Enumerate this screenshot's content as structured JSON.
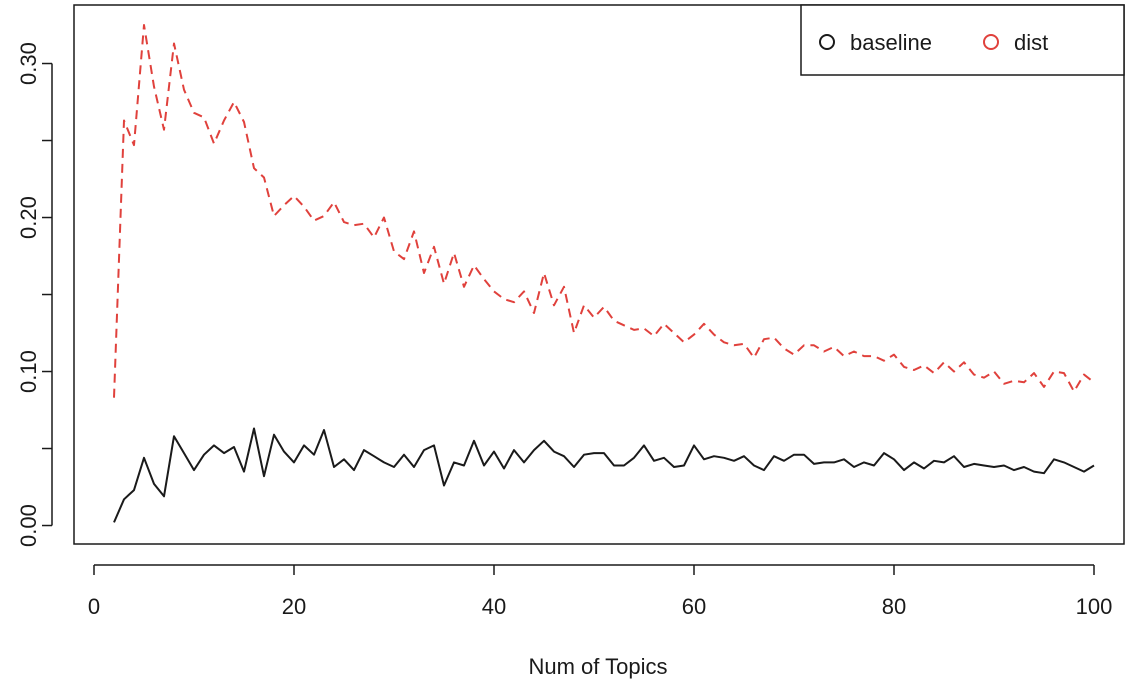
{
  "chart_data": {
    "type": "line",
    "title": "",
    "xlabel": "Num of Topics",
    "ylabel": "",
    "xlim": [
      -2,
      103
    ],
    "ylim": [
      -0.012,
      0.338
    ],
    "x_ticks": [
      0,
      20,
      40,
      60,
      80,
      100
    ],
    "x_tick_labels": [
      "0",
      "20",
      "40",
      "60",
      "80",
      "100"
    ],
    "y_ticks": [
      0.0,
      0.1,
      0.2,
      0.3
    ],
    "y_tick_labels": [
      "0.00",
      "0.10",
      "0.20",
      "0.30"
    ],
    "y_minor_ticks": [
      0.05,
      0.15,
      0.25
    ],
    "grid": false,
    "legend_position": "top-right",
    "x": [
      2,
      3,
      4,
      5,
      6,
      7,
      8,
      9,
      10,
      11,
      12,
      13,
      14,
      15,
      16,
      17,
      18,
      19,
      20,
      21,
      22,
      23,
      24,
      25,
      26,
      27,
      28,
      29,
      30,
      31,
      32,
      33,
      34,
      35,
      36,
      37,
      38,
      39,
      40,
      41,
      42,
      43,
      44,
      45,
      46,
      47,
      48,
      49,
      50,
      51,
      52,
      53,
      54,
      55,
      56,
      57,
      58,
      59,
      60,
      61,
      62,
      63,
      64,
      65,
      66,
      67,
      68,
      69,
      70,
      71,
      72,
      73,
      74,
      75,
      76,
      77,
      78,
      79,
      80,
      81,
      82,
      83,
      84,
      85,
      86,
      87,
      88,
      89,
      90,
      91,
      92,
      93,
      94,
      95,
      96,
      97,
      98,
      99,
      100
    ],
    "series": [
      {
        "name": "baseline",
        "color": "#1a1a1a",
        "dash": "solid",
        "values": [
          0.002,
          0.017,
          0.023,
          0.044,
          0.027,
          0.019,
          0.058,
          0.047,
          0.036,
          0.046,
          0.052,
          0.047,
          0.051,
          0.035,
          0.063,
          0.032,
          0.059,
          0.048,
          0.041,
          0.052,
          0.046,
          0.062,
          0.038,
          0.043,
          0.036,
          0.049,
          0.045,
          0.041,
          0.038,
          0.046,
          0.038,
          0.049,
          0.052,
          0.026,
          0.041,
          0.039,
          0.055,
          0.039,
          0.048,
          0.037,
          0.049,
          0.041,
          0.049,
          0.055,
          0.048,
          0.045,
          0.038,
          0.046,
          0.047,
          0.047,
          0.039,
          0.039,
          0.044,
          0.052,
          0.042,
          0.044,
          0.038,
          0.039,
          0.052,
          0.043,
          0.045,
          0.044,
          0.042,
          0.045,
          0.039,
          0.036,
          0.045,
          0.042,
          0.046,
          0.046,
          0.04,
          0.041,
          0.041,
          0.043,
          0.038,
          0.041,
          0.039,
          0.047,
          0.043,
          0.036,
          0.041,
          0.037,
          0.042,
          0.041,
          0.045,
          0.038,
          0.04,
          0.039,
          0.038,
          0.039,
          0.036,
          0.038,
          0.035,
          0.034,
          0.043,
          0.041,
          0.038,
          0.035,
          0.039
        ]
      },
      {
        "name": "dist",
        "color": "#e0413c",
        "dash": "dashed",
        "values": [
          0.083,
          0.263,
          0.247,
          0.325,
          0.285,
          0.257,
          0.313,
          0.283,
          0.268,
          0.265,
          0.248,
          0.263,
          0.275,
          0.262,
          0.232,
          0.226,
          0.201,
          0.208,
          0.214,
          0.207,
          0.198,
          0.201,
          0.21,
          0.197,
          0.195,
          0.196,
          0.187,
          0.2,
          0.178,
          0.173,
          0.191,
          0.164,
          0.181,
          0.157,
          0.177,
          0.155,
          0.169,
          0.16,
          0.152,
          0.147,
          0.145,
          0.152,
          0.138,
          0.164,
          0.143,
          0.155,
          0.125,
          0.143,
          0.135,
          0.142,
          0.133,
          0.13,
          0.127,
          0.128,
          0.123,
          0.131,
          0.125,
          0.119,
          0.124,
          0.131,
          0.124,
          0.119,
          0.117,
          0.118,
          0.109,
          0.121,
          0.122,
          0.115,
          0.111,
          0.117,
          0.117,
          0.113,
          0.116,
          0.11,
          0.113,
          0.11,
          0.11,
          0.107,
          0.111,
          0.103,
          0.101,
          0.104,
          0.099,
          0.106,
          0.1,
          0.106,
          0.098,
          0.096,
          0.1,
          0.092,
          0.094,
          0.093,
          0.099,
          0.09,
          0.1,
          0.099,
          0.087,
          0.098,
          0.093
        ]
      }
    ]
  }
}
